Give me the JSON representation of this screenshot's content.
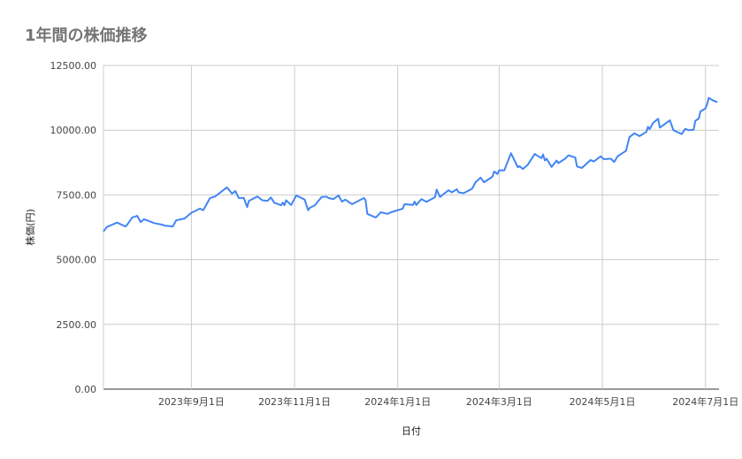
{
  "chart_data": {
    "type": "line",
    "title": "1年間の株価推移",
    "xlabel": "日付",
    "ylabel": "株価(円)",
    "ylim": [
      0,
      12500
    ],
    "xlim": [
      "2023-07-11",
      "2024-07-09"
    ],
    "yticks": [
      "0.00",
      "2500.00",
      "5000.00",
      "7500.00",
      "10000.00",
      "12500.00"
    ],
    "xticks": [
      {
        "date": "2023-09-01",
        "label": "2023年9月1日"
      },
      {
        "date": "2023-11-01",
        "label": "2023年11月1日"
      },
      {
        "date": "2024-01-01",
        "label": "2024年1月1日"
      },
      {
        "date": "2024-03-01",
        "label": "2024年3月1日"
      },
      {
        "date": "2024-05-01",
        "label": "2024年5月1日"
      },
      {
        "date": "2024-07-01",
        "label": "2024年7月1日"
      }
    ],
    "grid": true,
    "line_color": "#4285f4",
    "series": [
      {
        "x": [
          "2023-07-11",
          "2023-07-13",
          "2023-07-19",
          "2023-07-24",
          "2023-07-25",
          "2023-07-28",
          "2023-07-31",
          "2023-08-02",
          "2023-08-04",
          "2023-08-07",
          "2023-08-10",
          "2023-08-15",
          "2023-08-16",
          "2023-08-21",
          "2023-08-23",
          "2023-08-28",
          "2023-09-01",
          "2023-09-06",
          "2023-09-08",
          "2023-09-12",
          "2023-09-15",
          "2023-09-22",
          "2023-09-25",
          "2023-09-27",
          "2023-09-29",
          "2023-10-02",
          "2023-10-04",
          "2023-10-05",
          "2023-10-10",
          "2023-10-13",
          "2023-10-16",
          "2023-10-18",
          "2023-10-20",
          "2023-10-24",
          "2023-10-25",
          "2023-10-26",
          "2023-10-27",
          "2023-10-30",
          "2023-11-02",
          "2023-11-07",
          "2023-11-09",
          "2023-11-10",
          "2023-11-13",
          "2023-11-17",
          "2023-11-20",
          "2023-11-21",
          "2023-11-24",
          "2023-11-27",
          "2023-11-29",
          "2023-12-01",
          "2023-12-05",
          "2023-12-12",
          "2023-12-13",
          "2023-12-14",
          "2023-12-19",
          "2023-12-20",
          "2023-12-22",
          "2023-12-26",
          "2023-12-28",
          "2024-01-04",
          "2024-01-05",
          "2024-01-10",
          "2024-01-11",
          "2024-01-12",
          "2024-01-15",
          "2024-01-18",
          "2024-01-23",
          "2024-01-24",
          "2024-01-26",
          "2024-01-31",
          "2024-02-02",
          "2024-02-05",
          "2024-02-06",
          "2024-02-09",
          "2024-02-14",
          "2024-02-16",
          "2024-02-19",
          "2024-02-21",
          "2024-02-26",
          "2024-02-27",
          "2024-02-29",
          "2024-03-01",
          "2024-03-04",
          "2024-03-08",
          "2024-03-12",
          "2024-03-13",
          "2024-03-15",
          "2024-03-18",
          "2024-03-22",
          "2024-03-26",
          "2024-03-27",
          "2024-03-28",
          "2024-03-29",
          "2024-04-01",
          "2024-04-04",
          "2024-04-05",
          "2024-04-09",
          "2024-04-11",
          "2024-04-15",
          "2024-04-16",
          "2024-04-18",
          "2024-04-19",
          "2024-04-24",
          "2024-04-26",
          "2024-04-30",
          "2024-05-02",
          "2024-05-06",
          "2024-05-08",
          "2024-05-10",
          "2024-05-15",
          "2024-05-17",
          "2024-05-20",
          "2024-05-23",
          "2024-05-27",
          "2024-05-28",
          "2024-05-29",
          "2024-05-31",
          "2024-06-03",
          "2024-06-04",
          "2024-06-10",
          "2024-06-12",
          "2024-06-17",
          "2024-06-19",
          "2024-06-21",
          "2024-06-24",
          "2024-06-25",
          "2024-06-27",
          "2024-06-28",
          "2024-07-01",
          "2024-07-02",
          "2024-07-03",
          "2024-07-05",
          "2024-07-08"
        ],
        "values": [
          6090,
          6260,
          6430,
          6280,
          6350,
          6630,
          6690,
          6450,
          6560,
          6490,
          6410,
          6350,
          6320,
          6280,
          6520,
          6590,
          6810,
          6970,
          6910,
          7380,
          7440,
          7790,
          7550,
          7650,
          7380,
          7380,
          7030,
          7270,
          7440,
          7290,
          7270,
          7400,
          7200,
          7100,
          7200,
          7100,
          7290,
          7110,
          7480,
          7320,
          6910,
          7000,
          7100,
          7420,
          7430,
          7380,
          7340,
          7480,
          7240,
          7320,
          7140,
          7380,
          7290,
          6770,
          6630,
          6690,
          6830,
          6770,
          6830,
          6970,
          7140,
          7110,
          7240,
          7110,
          7340,
          7230,
          7410,
          7710,
          7420,
          7680,
          7600,
          7720,
          7600,
          7570,
          7740,
          7990,
          8170,
          7990,
          8200,
          8400,
          8310,
          8450,
          8450,
          9110,
          8570,
          8610,
          8500,
          8670,
          9080,
          8920,
          9060,
          8830,
          8900,
          8580,
          8830,
          8730,
          8900,
          9030,
          8940,
          8600,
          8560,
          8540,
          8850,
          8790,
          8990,
          8880,
          8900,
          8770,
          8990,
          9200,
          9730,
          9880,
          9770,
          9930,
          10130,
          10040,
          10280,
          10440,
          10100,
          10380,
          10000,
          9850,
          10050,
          10000,
          10020,
          10360,
          10450,
          10720,
          10840,
          11010,
          11250,
          11160,
          11080
        ]
      }
    ]
  }
}
